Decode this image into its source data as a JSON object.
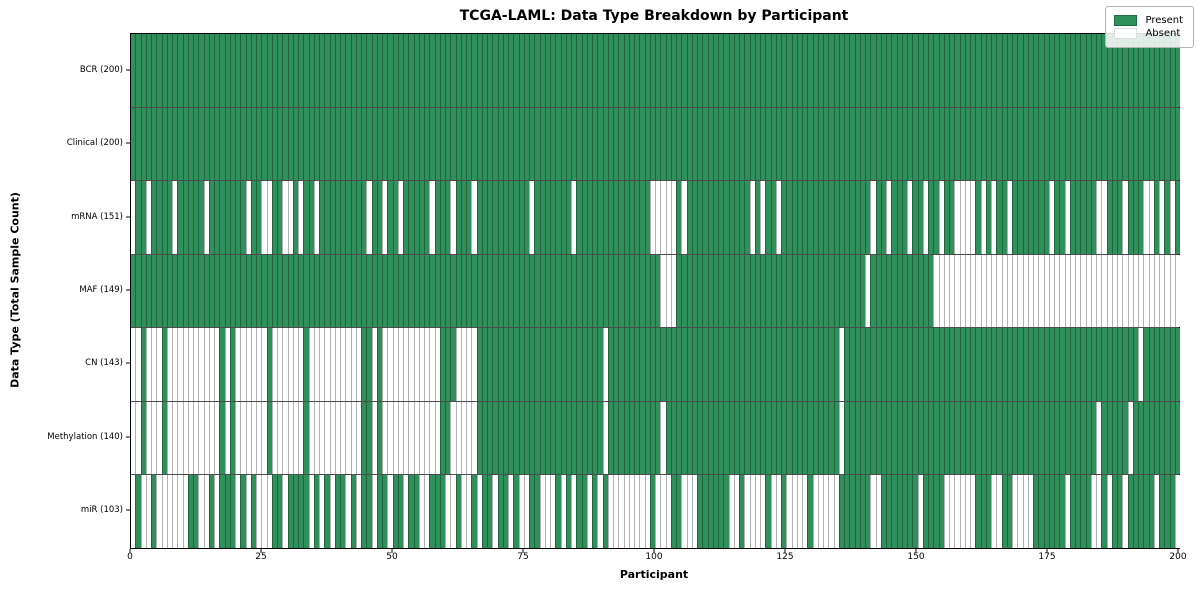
{
  "chart_data": {
    "type": "heatmap",
    "title": "TCGA-LAML: Data Type Breakdown by Participant",
    "xlabel": "Participant",
    "ylabel": "Data Type (Total Sample Count)",
    "x_ticks": [
      0,
      25,
      50,
      75,
      100,
      125,
      150,
      175,
      200
    ],
    "x_range": [
      0,
      200
    ],
    "n_participants": 200,
    "grid": "off",
    "legend": {
      "position": "upper right",
      "entries": [
        {
          "label": "Present",
          "state": "present",
          "color": "#30905c"
        },
        {
          "label": "Absent",
          "state": "absent",
          "color": "#ffffff"
        }
      ]
    },
    "colors": {
      "present": "#30905c",
      "absent": "#ffffff",
      "cell_edge": "#4d4d4d",
      "border": "#000000"
    },
    "rows": [
      {
        "name": "BCR",
        "label": "BCR (200)",
        "total": 200,
        "present_mask": "11111111111111111111111111111111111111111111111111111111111111111111111111111111111111111111111111111111111111111111111111111111111111111111111111111111111111111111111111111111111111111111111111111111"
      },
      {
        "name": "Clinical",
        "label": "Clinical (200)",
        "total": 200,
        "present_mask": "11111111111111111111111111111111111111111111111111111111111111111111111111111111111111111111111111111111111111111111111111111111111111111111111111111111111111111111111111111111111111111111111111111111"
      },
      {
        "name": "mRNA",
        "label": "mRNA (151)",
        "total": 151,
        "present_mask": "01101111011111011111110110011001011011111111101101101111101110111011111111110111111101111111111111100000101111111111110101101111111111111111101101110110110110000101011011111110110111110011101110010101"
      },
      {
        "name": "MAF",
        "label": "MAF (149)",
        "total": 149,
        "present_mask": "11111111111111111111111111111111111111111111111111111111111111111111111111111111111111111111111111111000111111111111111111111111111111111111011111111111100000000000000000000000000000000000000000000000"
      },
      {
        "name": "CN",
        "label": "CN (143)",
        "total": 143,
        "present_mask": "00100010000000000101000000100000010000000000110100000000000111000011111111111111111111111101111111111111111111111111111111111111111111101111111111111111111111111111111111111111111111111111111101111111"
      },
      {
        "name": "Methylation",
        "label": "Methylation (140)",
        "total": 140,
        "present_mask": "00100010000000000101000000100000010000000000110100000000000110000011111111111111111111111101111111111011111111111111111111111111111111101111111111111111111111111111111111111111111111110111110111111111"
      },
      {
        "name": "miR",
        "label": "miR (103)",
        "total": 103,
        "present_mask": "01001000000110010111010100011011110101011010110110110110011100100101101101001100010101101010000000010001100011111100100001001000010000011111100111111101111000000111001100001111110111100101101111101110"
      }
    ]
  }
}
